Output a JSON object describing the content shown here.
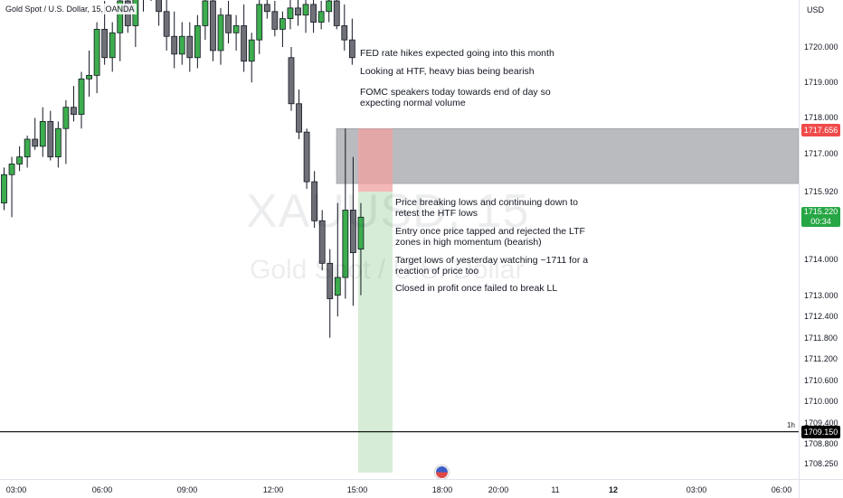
{
  "header": {
    "symbol_title": "Gold Spot / U.S. Dollar, 15, OANDA",
    "currency": "USD"
  },
  "watermark": {
    "symbol": "XAUUSD, 15",
    "name": "Gold Spot / U.S. Dollar"
  },
  "notes": {
    "top": [
      "FED rate hikes expected going into this month",
      "Looking at HTF, heavy bias being bearish",
      "FOMC speakers today towards end of day so\nexpecting normal volume"
    ],
    "bottom": [
      "Price breaking lows and continuing down to\nretest the HTF lows",
      "Entry once price tapped and rejected the LTF\nzones in high momentum (bearish)",
      "Target lows of yesterday watching ~1711 for a\nreaction of price too",
      "Closed in profit once failed to break LL"
    ]
  },
  "price_axis": {
    "labels": [
      "1720.000",
      "1719.000",
      "1718.000",
      "1717.000",
      "1715.920",
      "1714.000",
      "1713.000",
      "1712.400",
      "1711.800",
      "1711.200",
      "1710.600",
      "1710.000",
      "1709.400",
      "1708.800",
      "1708.250"
    ],
    "label_values": [
      1720.0,
      1719.0,
      1718.0,
      1717.0,
      1715.92,
      1714.0,
      1713.0,
      1712.4,
      1711.8,
      1711.2,
      1710.6,
      1710.0,
      1709.4,
      1708.8,
      1708.25
    ]
  },
  "time_axis": {
    "labels": [
      {
        "text": "03:00",
        "bold": false
      },
      {
        "text": "06:00",
        "bold": false
      },
      {
        "text": "09:00",
        "bold": false
      },
      {
        "text": "12:00",
        "bold": false
      },
      {
        "text": "15:00",
        "bold": false
      },
      {
        "text": "18:00",
        "bold": false
      },
      {
        "text": "20:00",
        "bold": false
      },
      {
        "text": "11",
        "bold": false
      },
      {
        "text": "12",
        "bold": true
      },
      {
        "text": "03:00",
        "bold": false
      },
      {
        "text": "06:00",
        "bold": false
      }
    ]
  },
  "tags": {
    "stop_price": "1717.656",
    "current_price": "1715.220",
    "countdown": "00:34",
    "line_price": "1709.150",
    "timeframe": "1h"
  },
  "colors": {
    "up": "#3dad4e",
    "down": "#6f7078",
    "stop_zone": "#f2a0a0",
    "target_zone": "#cfe9cf",
    "htf_zone": "#b7b8bc"
  },
  "zones": {
    "htf_zone": {
      "top": 1717.7,
      "bottom": 1716.15
    },
    "stop_zone": {
      "top": 1717.7,
      "bottom": 1715.92
    },
    "target_zone": {
      "top": 1715.92,
      "bottom": 1708.0
    },
    "hline_price": 1709.15
  },
  "chart_data": {
    "type": "candlestick",
    "title": "Gold Spot / U.S. Dollar, 15, OANDA",
    "y_range": [
      1708.0,
      1721.0
    ],
    "candles": [
      {
        "o": 1715.6,
        "h": 1716.6,
        "l": 1715.4,
        "c": 1716.4
      },
      {
        "o": 1716.4,
        "h": 1716.9,
        "l": 1715.2,
        "c": 1716.7
      },
      {
        "o": 1716.7,
        "h": 1717.2,
        "l": 1716.5,
        "c": 1716.9
      },
      {
        "o": 1716.9,
        "h": 1717.5,
        "l": 1716.6,
        "c": 1717.4
      },
      {
        "o": 1717.4,
        "h": 1718.0,
        "l": 1717.1,
        "c": 1717.2
      },
      {
        "o": 1717.2,
        "h": 1718.3,
        "l": 1716.9,
        "c": 1717.9
      },
      {
        "o": 1717.9,
        "h": 1718.2,
        "l": 1716.8,
        "c": 1716.9
      },
      {
        "o": 1716.9,
        "h": 1717.9,
        "l": 1716.6,
        "c": 1717.7
      },
      {
        "o": 1717.7,
        "h": 1718.5,
        "l": 1716.7,
        "c": 1718.3
      },
      {
        "o": 1718.3,
        "h": 1718.9,
        "l": 1717.9,
        "c": 1718.1
      },
      {
        "o": 1718.1,
        "h": 1719.3,
        "l": 1717.7,
        "c": 1719.1
      },
      {
        "o": 1719.1,
        "h": 1719.9,
        "l": 1718.6,
        "c": 1719.2
      },
      {
        "o": 1719.2,
        "h": 1720.7,
        "l": 1718.7,
        "c": 1720.5
      },
      {
        "o": 1720.5,
        "h": 1721.3,
        "l": 1719.5,
        "c": 1719.7
      },
      {
        "o": 1719.7,
        "h": 1720.7,
        "l": 1719.3,
        "c": 1720.4
      },
      {
        "o": 1720.4,
        "h": 1721.6,
        "l": 1719.6,
        "c": 1721.3
      },
      {
        "o": 1721.3,
        "h": 1722.0,
        "l": 1720.4,
        "c": 1720.6
      },
      {
        "o": 1720.6,
        "h": 1721.6,
        "l": 1720.0,
        "c": 1721.4
      },
      {
        "o": 1721.4,
        "h": 1722.3,
        "l": 1721.0,
        "c": 1721.9
      },
      {
        "o": 1721.9,
        "h": 1722.5,
        "l": 1721.3,
        "c": 1721.5
      },
      {
        "o": 1721.5,
        "h": 1722.0,
        "l": 1720.6,
        "c": 1721.0
      },
      {
        "o": 1721.0,
        "h": 1721.5,
        "l": 1719.9,
        "c": 1720.3
      },
      {
        "o": 1720.3,
        "h": 1721.0,
        "l": 1719.4,
        "c": 1719.8
      },
      {
        "o": 1719.8,
        "h": 1720.7,
        "l": 1719.5,
        "c": 1720.3
      },
      {
        "o": 1720.3,
        "h": 1720.7,
        "l": 1719.3,
        "c": 1719.7
      },
      {
        "o": 1719.7,
        "h": 1720.9,
        "l": 1719.4,
        "c": 1720.6
      },
      {
        "o": 1720.6,
        "h": 1721.6,
        "l": 1720.2,
        "c": 1721.3
      },
      {
        "o": 1721.3,
        "h": 1722.0,
        "l": 1719.6,
        "c": 1719.9
      },
      {
        "o": 1719.9,
        "h": 1721.1,
        "l": 1719.5,
        "c": 1720.9
      },
      {
        "o": 1720.9,
        "h": 1721.3,
        "l": 1720.1,
        "c": 1720.4
      },
      {
        "o": 1720.4,
        "h": 1720.9,
        "l": 1719.9,
        "c": 1720.6
      },
      {
        "o": 1720.6,
        "h": 1721.2,
        "l": 1719.3,
        "c": 1719.6
      },
      {
        "o": 1719.6,
        "h": 1720.4,
        "l": 1719.0,
        "c": 1720.2
      },
      {
        "o": 1720.2,
        "h": 1721.6,
        "l": 1719.8,
        "c": 1721.2
      },
      {
        "o": 1721.2,
        "h": 1721.5,
        "l": 1720.8,
        "c": 1721.0
      },
      {
        "o": 1721.0,
        "h": 1721.3,
        "l": 1720.3,
        "c": 1720.5
      },
      {
        "o": 1720.5,
        "h": 1721.0,
        "l": 1720.0,
        "c": 1720.8
      },
      {
        "o": 1720.8,
        "h": 1721.4,
        "l": 1720.5,
        "c": 1721.1
      },
      {
        "o": 1721.1,
        "h": 1721.6,
        "l": 1720.6,
        "c": 1720.9
      },
      {
        "o": 1720.9,
        "h": 1721.5,
        "l": 1720.4,
        "c": 1721.2
      },
      {
        "o": 1721.2,
        "h": 1721.8,
        "l": 1720.4,
        "c": 1720.7
      },
      {
        "o": 1720.7,
        "h": 1721.3,
        "l": 1720.5,
        "c": 1721.0
      },
      {
        "o": 1721.0,
        "h": 1721.6,
        "l": 1720.7,
        "c": 1721.3
      },
      {
        "o": 1721.3,
        "h": 1721.8,
        "l": 1720.5,
        "c": 1720.6
      },
      {
        "o": 1720.6,
        "h": 1721.2,
        "l": 1719.9,
        "c": 1720.2
      },
      {
        "o": 1720.2,
        "h": 1720.8,
        "l": 1719.5,
        "c": 1719.7
      },
      {
        "o": 1719.7,
        "h": 1720.0,
        "l": 1718.2,
        "c": 1718.4
      },
      {
        "o": 1718.4,
        "h": 1718.8,
        "l": 1717.4,
        "c": 1717.6
      },
      {
        "o": 1717.6,
        "h": 1717.7,
        "l": 1716.0,
        "c": 1716.2
      },
      {
        "o": 1716.2,
        "h": 1716.5,
        "l": 1714.9,
        "c": 1715.1
      },
      {
        "o": 1715.1,
        "h": 1715.4,
        "l": 1713.7,
        "c": 1713.9
      },
      {
        "o": 1713.9,
        "h": 1714.3,
        "l": 1711.8,
        "c": 1712.9
      },
      {
        "o": 1713.0,
        "h": 1715.6,
        "l": 1712.4,
        "c": 1713.5
      },
      {
        "o": 1713.5,
        "h": 1717.7,
        "l": 1712.9,
        "c": 1715.4
      },
      {
        "o": 1715.4,
        "h": 1716.9,
        "l": 1712.7,
        "c": 1714.2
      },
      {
        "o": 1714.3,
        "h": 1715.6,
        "l": 1713.0,
        "c": 1715.2
      }
    ]
  }
}
